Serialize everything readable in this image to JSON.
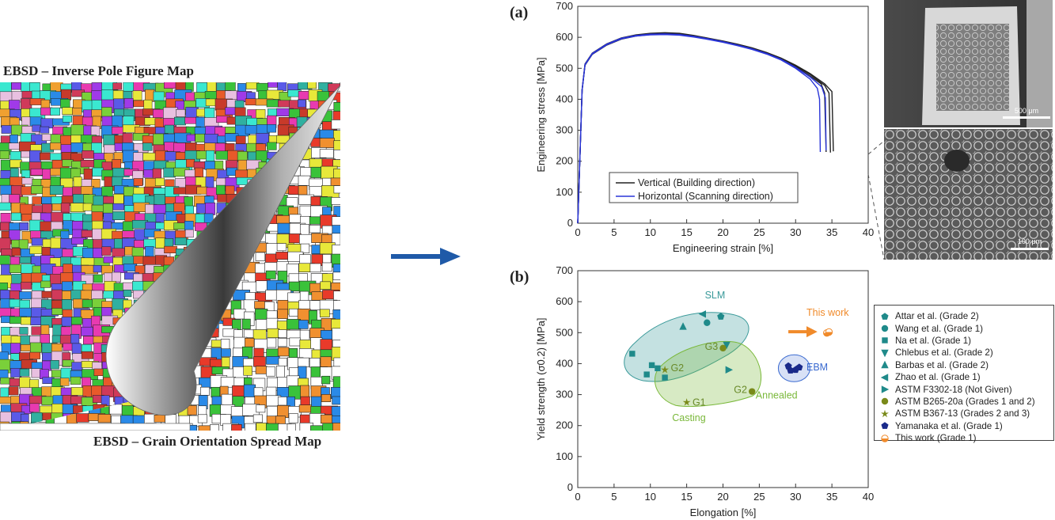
{
  "left_panel": {
    "title": "EBSD – Inverse Pole Figure Map",
    "subtitle": "EBSD – Grain Orientation Spread Map"
  },
  "sem": {
    "scale_top": "500 μm",
    "scale_bottom": "100 μm"
  },
  "chart_data": [
    {
      "panel_label": "(a)",
      "type": "line",
      "xlabel": "Engineering strain [%]",
      "ylabel": "Engineering stress [MPa]",
      "xlim": [
        0,
        40
      ],
      "ylim": [
        0,
        700
      ],
      "xticks": [
        0,
        5,
        10,
        15,
        20,
        25,
        30,
        35,
        40
      ],
      "yticks": [
        0,
        100,
        200,
        300,
        400,
        500,
        600,
        700
      ],
      "legend_placement": "bottom-left",
      "series": [
        {
          "name": "Vertical (Building direction)",
          "color": "#222222",
          "curves": [
            [
              [
                0,
                0
              ],
              [
                0.6,
                430
              ],
              [
                1.0,
                510
              ],
              [
                2,
                545
              ],
              [
                4,
                575
              ],
              [
                6,
                594
              ],
              [
                8,
                604
              ],
              [
                10,
                609
              ],
              [
                12,
                612
              ],
              [
                14,
                610
              ],
              [
                16,
                603
              ],
              [
                18,
                594
              ],
              [
                20,
                585
              ],
              [
                22,
                575
              ],
              [
                24,
                563
              ],
              [
                26,
                548
              ],
              [
                28,
                530
              ],
              [
                30,
                505
              ],
              [
                32,
                475
              ],
              [
                33.5,
                450
              ],
              [
                34,
                420
              ],
              [
                34.2,
                230
              ]
            ],
            [
              [
                0,
                0
              ],
              [
                0.6,
                430
              ],
              [
                1.0,
                512
              ],
              [
                2,
                547
              ],
              [
                4,
                577
              ],
              [
                6,
                596
              ],
              [
                8,
                606
              ],
              [
                10,
                611
              ],
              [
                12,
                614
              ],
              [
                14,
                612
              ],
              [
                16,
                605
              ],
              [
                18,
                596
              ],
              [
                20,
                587
              ],
              [
                22,
                577
              ],
              [
                24,
                565
              ],
              [
                26,
                550
              ],
              [
                28,
                532
              ],
              [
                30,
                508
              ],
              [
                32,
                480
              ],
              [
                34,
                445
              ],
              [
                34.6,
                420
              ],
              [
                34.8,
                228
              ]
            ],
            [
              [
                0,
                0
              ],
              [
                0.6,
                430
              ],
              [
                1.0,
                514
              ],
              [
                2,
                549
              ],
              [
                4,
                579
              ],
              [
                6,
                598
              ],
              [
                8,
                608
              ],
              [
                10,
                613
              ],
              [
                12,
                615
              ],
              [
                14,
                613
              ],
              [
                16,
                606
              ],
              [
                18,
                597
              ],
              [
                20,
                588
              ],
              [
                22,
                578
              ],
              [
                24,
                566
              ],
              [
                26,
                551
              ],
              [
                28,
                533
              ],
              [
                30,
                510
              ],
              [
                32,
                483
              ],
              [
                34,
                450
              ],
              [
                35,
                425
              ],
              [
                35.2,
                232
              ]
            ]
          ]
        },
        {
          "name": "Horizontal (Scanning direction)",
          "color": "#2a35d8",
          "curves": [
            [
              [
                0,
                0
              ],
              [
                0.6,
                430
              ],
              [
                1.0,
                511
              ],
              [
                2,
                546
              ],
              [
                4,
                576
              ],
              [
                6,
                595
              ],
              [
                8,
                604
              ],
              [
                10,
                608
              ],
              [
                12,
                609
              ],
              [
                14,
                607
              ],
              [
                16,
                601
              ],
              [
                18,
                593
              ],
              [
                20,
                584
              ],
              [
                22,
                573
              ],
              [
                24,
                561
              ],
              [
                26,
                546
              ],
              [
                28,
                527
              ],
              [
                30,
                500
              ],
              [
                32,
                465
              ],
              [
                33,
                435
              ],
              [
                33.3,
                400
              ],
              [
                33.4,
                230
              ]
            ],
            [
              [
                0,
                0
              ],
              [
                0.6,
                430
              ],
              [
                1.0,
                513
              ],
              [
                2,
                548
              ],
              [
                4,
                578
              ],
              [
                6,
                597
              ],
              [
                8,
                606
              ],
              [
                10,
                610
              ],
              [
                12,
                611
              ],
              [
                14,
                609
              ],
              [
                16,
                603
              ],
              [
                18,
                595
              ],
              [
                20,
                586
              ],
              [
                22,
                575
              ],
              [
                24,
                563
              ],
              [
                26,
                548
              ],
              [
                28,
                529
              ],
              [
                30,
                503
              ],
              [
                32,
                472
              ],
              [
                33.6,
                440
              ],
              [
                34.1,
                405
              ],
              [
                34.2,
                235
              ]
            ]
          ]
        }
      ]
    },
    {
      "panel_label": "(b)",
      "type": "scatter",
      "xlabel": "Elongation [%]",
      "ylabel": "Yield strength (σ0.2) [MPa]",
      "xlim": [
        0,
        40
      ],
      "ylim": [
        0,
        700
      ],
      "xticks": [
        0,
        5,
        10,
        15,
        20,
        25,
        30,
        35,
        40
      ],
      "yticks": [
        0,
        100,
        200,
        300,
        400,
        500,
        600,
        700
      ],
      "legend_placement": "outside-right",
      "regions": [
        {
          "label": "SLM",
          "color": "#3a9a9a"
        },
        {
          "label": "Casting",
          "color": "#7ab83a"
        },
        {
          "label": "Annealed",
          "color": "#7ab83a"
        },
        {
          "label": "EBM",
          "color": "#3a6ad0"
        }
      ],
      "annotations": [
        "G1",
        "G2",
        "G3",
        "G2",
        "This work"
      ],
      "series": [
        {
          "name": "Attar et al. (Grade 2)",
          "marker": "pentagon",
          "color": "#1f8a8a",
          "points": [
            [
              19.7,
              552
            ]
          ]
        },
        {
          "name": "Wang et al. (Grade 1)",
          "marker": "circle",
          "color": "#1f8a8a",
          "points": [
            [
              17.8,
              532
            ]
          ]
        },
        {
          "name": "Na et al. (Grade 1)",
          "marker": "square",
          "color": "#1f8a8a",
          "points": [
            [
              7.5,
              432
            ],
            [
              10.2,
              395
            ],
            [
              11.0,
              385
            ],
            [
              9.5,
              365
            ],
            [
              12.0,
              355
            ]
          ]
        },
        {
          "name": "Chlebus et al. (Grade 2)",
          "marker": "triangle-down",
          "color": "#1f8a8a",
          "points": [
            [
              20.5,
              460
            ]
          ]
        },
        {
          "name": "Barbas et al. (Grade 2)",
          "marker": "triangle-up",
          "color": "#1f8a8a",
          "points": [
            [
              14.5,
              520
            ]
          ]
        },
        {
          "name": "Zhao et al. (Grade 1)",
          "marker": "triangle-left",
          "color": "#1f8a8a",
          "points": [
            [
              17.2,
              560
            ]
          ]
        },
        {
          "name": "ASTM F3302-18 (Not Given)",
          "marker": "triangle-right",
          "color": "#1f8a8a",
          "points": [
            [
              20.8,
              380
            ]
          ]
        },
        {
          "name": "ASTM B265-20a (Grades 1 and 2)",
          "marker": "circle",
          "color": "#7a8a1a",
          "points": [
            [
              20.0,
              450
            ],
            [
              24.0,
              310
            ]
          ]
        },
        {
          "name": "ASTM B367-13 (Grades 2 and 3)",
          "marker": "star",
          "color": "#7a8a1a",
          "points": [
            [
              12.0,
              380
            ],
            [
              15.0,
              275
            ]
          ]
        },
        {
          "name": "Yamanaka et al. (Grade 1)",
          "marker": "pentagon",
          "color": "#1a2a8a",
          "points": [
            [
              29.0,
              392
            ],
            [
              30.0,
              380
            ],
            [
              29.3,
              378
            ],
            [
              30.5,
              388
            ]
          ]
        },
        {
          "name": "This work (Grade 1)",
          "marker": "half-circle",
          "color": "#f08a2a",
          "points": [
            [
              34.3,
              499
            ],
            [
              34.6,
              502
            ]
          ]
        }
      ]
    }
  ]
}
